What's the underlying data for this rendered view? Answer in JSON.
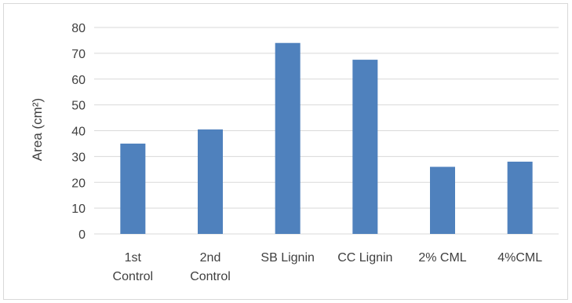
{
  "chart_data": {
    "type": "bar",
    "categories": [
      "1st Control",
      "2nd Control",
      "SB Lignin",
      "CC Lignin",
      "2% CML",
      "4%CML"
    ],
    "category_lines": [
      [
        "1st",
        "Control"
      ],
      [
        "2nd",
        "Control"
      ],
      [
        "SB Lignin"
      ],
      [
        "CC Lignin"
      ],
      [
        "2% CML"
      ],
      [
        "4%CML"
      ]
    ],
    "values": [
      35,
      40.5,
      74,
      67.5,
      26,
      28
    ],
    "title": "",
    "xlabel": "",
    "ylabel": "Area (cm²)",
    "ylim": [
      0,
      80
    ],
    "yticks": [
      0,
      10,
      20,
      30,
      40,
      50,
      60,
      70,
      80
    ],
    "grid": true,
    "legend": "none",
    "bar_color": "#4f81bd",
    "grid_color": "#d9d9d9"
  }
}
